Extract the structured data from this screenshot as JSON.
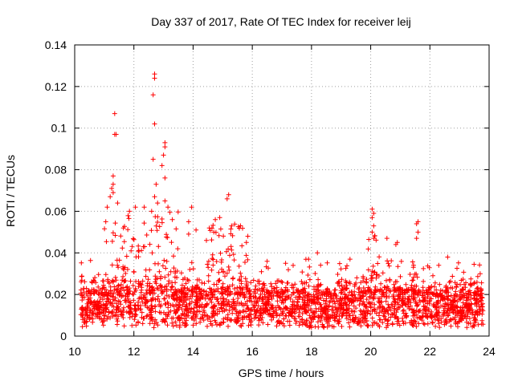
{
  "chart_data": {
    "type": "scatter",
    "title": "Day 337 of 2017, Rate Of TEC Index for receiver leij",
    "xlabel": "GPS time / hours",
    "ylabel": "ROTI / TECUs",
    "xlim": [
      10,
      24
    ],
    "ylim": [
      0,
      0.14
    ],
    "x_ticks": [
      10,
      12,
      14,
      16,
      18,
      20,
      22,
      24
    ],
    "x_tick_labels": [
      "10",
      "12",
      "14",
      "16",
      "18",
      "20",
      "22",
      "24"
    ],
    "y_ticks": [
      0,
      0.02,
      0.04,
      0.06,
      0.08,
      0.1,
      0.12,
      0.14
    ],
    "y_tick_labels": [
      "0",
      "0.02",
      "0.04",
      "0.06",
      "0.08",
      "0.1",
      "0.12",
      "0.14"
    ],
    "grid": true,
    "marker": "+",
    "color": "#ff0000",
    "data_range_x": [
      10.2,
      23.8
    ],
    "highlight_points": [
      {
        "x": 11.35,
        "y": 0.107
      },
      {
        "x": 11.35,
        "y": 0.097
      },
      {
        "x": 11.4,
        "y": 0.097
      },
      {
        "x": 11.3,
        "y": 0.077
      },
      {
        "x": 11.3,
        "y": 0.073
      },
      {
        "x": 11.25,
        "y": 0.071
      },
      {
        "x": 11.3,
        "y": 0.069
      },
      {
        "x": 11.2,
        "y": 0.067
      },
      {
        "x": 11.1,
        "y": 0.062
      },
      {
        "x": 11.45,
        "y": 0.064
      },
      {
        "x": 11.05,
        "y": 0.055
      },
      {
        "x": 12.7,
        "y": 0.126
      },
      {
        "x": 12.7,
        "y": 0.124
      },
      {
        "x": 12.65,
        "y": 0.116
      },
      {
        "x": 12.7,
        "y": 0.102
      },
      {
        "x": 12.65,
        "y": 0.085
      },
      {
        "x": 12.75,
        "y": 0.073
      },
      {
        "x": 12.7,
        "y": 0.067
      },
      {
        "x": 12.8,
        "y": 0.064
      },
      {
        "x": 12.6,
        "y": 0.06
      },
      {
        "x": 13.05,
        "y": 0.093
      },
      {
        "x": 13.05,
        "y": 0.091
      },
      {
        "x": 13.0,
        "y": 0.087
      },
      {
        "x": 13.05,
        "y": 0.076
      },
      {
        "x": 12.95,
        "y": 0.082
      },
      {
        "x": 11.85,
        "y": 0.06
      },
      {
        "x": 12.05,
        "y": 0.062
      },
      {
        "x": 12.35,
        "y": 0.062
      },
      {
        "x": 13.05,
        "y": 0.065
      },
      {
        "x": 13.15,
        "y": 0.062
      },
      {
        "x": 13.3,
        "y": 0.056
      },
      {
        "x": 13.95,
        "y": 0.062
      },
      {
        "x": 13.85,
        "y": 0.055
      },
      {
        "x": 13.85,
        "y": 0.049
      },
      {
        "x": 14.1,
        "y": 0.051
      },
      {
        "x": 14.45,
        "y": 0.046
      },
      {
        "x": 14.55,
        "y": 0.052
      },
      {
        "x": 14.9,
        "y": 0.057
      },
      {
        "x": 14.75,
        "y": 0.056
      },
      {
        "x": 15.2,
        "y": 0.068
      },
      {
        "x": 15.15,
        "y": 0.066
      },
      {
        "x": 15.3,
        "y": 0.053
      },
      {
        "x": 15.85,
        "y": 0.048
      },
      {
        "x": 15.8,
        "y": 0.045
      },
      {
        "x": 14.7,
        "y": 0.05
      },
      {
        "x": 20.05,
        "y": 0.061
      },
      {
        "x": 20.1,
        "y": 0.059
      },
      {
        "x": 20.05,
        "y": 0.057
      },
      {
        "x": 20.1,
        "y": 0.053
      },
      {
        "x": 20.05,
        "y": 0.05
      },
      {
        "x": 20.1,
        "y": 0.047
      },
      {
        "x": 20.55,
        "y": 0.047
      },
      {
        "x": 20.9,
        "y": 0.045
      },
      {
        "x": 20.85,
        "y": 0.044
      },
      {
        "x": 21.6,
        "y": 0.055
      },
      {
        "x": 21.55,
        "y": 0.054
      },
      {
        "x": 21.6,
        "y": 0.05
      },
      {
        "x": 21.55,
        "y": 0.047
      },
      {
        "x": 21.45,
        "y": 0.034
      },
      {
        "x": 22.6,
        "y": 0.038
      },
      {
        "x": 18.2,
        "y": 0.04
      },
      {
        "x": 17.9,
        "y": 0.037
      },
      {
        "x": 19.3,
        "y": 0.037
      },
      {
        "x": 23.7,
        "y": 0.03
      },
      {
        "x": 16.5,
        "y": 0.036
      },
      {
        "x": 22.3,
        "y": 0.034
      }
    ],
    "bulk_description": {
      "typical_range": [
        0.005,
        0.025
      ],
      "peak_regions": [
        {
          "x_range": [
            11.0,
            13.5
          ],
          "y_max": 0.06
        },
        {
          "x_range": [
            14.5,
            15.8
          ],
          "y_max": 0.055
        },
        {
          "x_range": [
            19.9,
            20.3
          ],
          "y_max": 0.05
        }
      ]
    }
  }
}
